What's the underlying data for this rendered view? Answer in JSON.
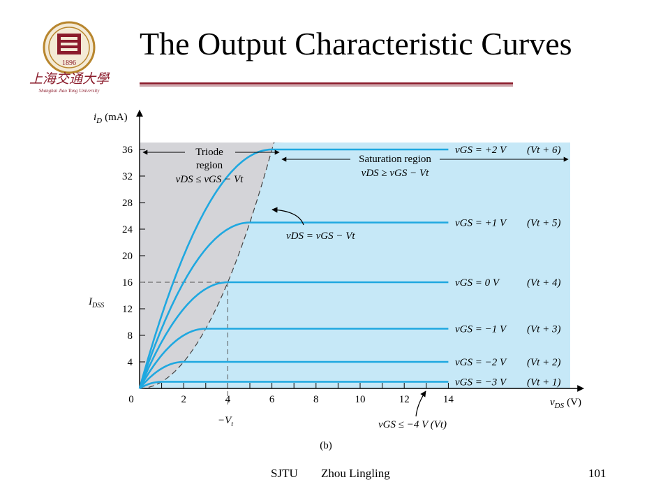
{
  "slide": {
    "title": "The Output Characteristic Curves",
    "footer": {
      "left": "SJTU",
      "center": "Zhou Lingling",
      "page": "101"
    },
    "logo": {
      "icon": "sjtu-university-logo",
      "text_cn": "上海交通大學",
      "text_en": "Shanghai Jiao Tong University",
      "year": "1896"
    }
  },
  "diagram": {
    "y_axis_label": "i",
    "y_axis_sub": "D",
    "y_axis_unit": "(mA)",
    "x_axis_label": "v",
    "x_axis_sub": "DS",
    "x_axis_unit": "(V)",
    "y_ticks": [
      "4",
      "8",
      "12",
      "16",
      "20",
      "24",
      "28",
      "32",
      "36"
    ],
    "x_ticks": [
      "0",
      "2",
      "4",
      "6",
      "8",
      "10",
      "12",
      "14"
    ],
    "idss_label": "I",
    "idss_sub": "DSS",
    "minus_vt_label": "−V",
    "minus_vt_sub": "t",
    "triode_region": {
      "line1": "Triode",
      "line2": "region",
      "cond": "vDS ≤ vGS − Vt"
    },
    "saturation_region": {
      "line1": "Saturation region",
      "cond": "vDS ≥ vGS − Vt"
    },
    "boundary_label": "vDS = vGS − Vt",
    "cutoff_label": "vGS ≤ −4 V (Vt)",
    "caption": "(b)",
    "colors": {
      "curve": "#1fa8e0",
      "saturation_bg": "#c6e8f7",
      "triode_bg": "#d4d4d8"
    },
    "curves": [
      {
        "vgs": "vGS = +2 V",
        "vt": "(Vt + 6)",
        "id_sat": 36,
        "vov": 6
      },
      {
        "vgs": "vGS = +1 V",
        "vt": "(Vt + 5)",
        "id_sat": 25,
        "vov": 5
      },
      {
        "vgs": "vGS = 0 V",
        "vt": "(Vt + 4)",
        "id_sat": 16,
        "vov": 4
      },
      {
        "vgs": "vGS = −1 V",
        "vt": "(Vt + 3)",
        "id_sat": 9,
        "vov": 3
      },
      {
        "vgs": "vGS = −2 V",
        "vt": "(Vt + 2)",
        "id_sat": 4,
        "vov": 2
      },
      {
        "vgs": "vGS = −3 V",
        "vt": "(Vt + 1)",
        "id_sat": 1,
        "vov": 1
      }
    ]
  }
}
